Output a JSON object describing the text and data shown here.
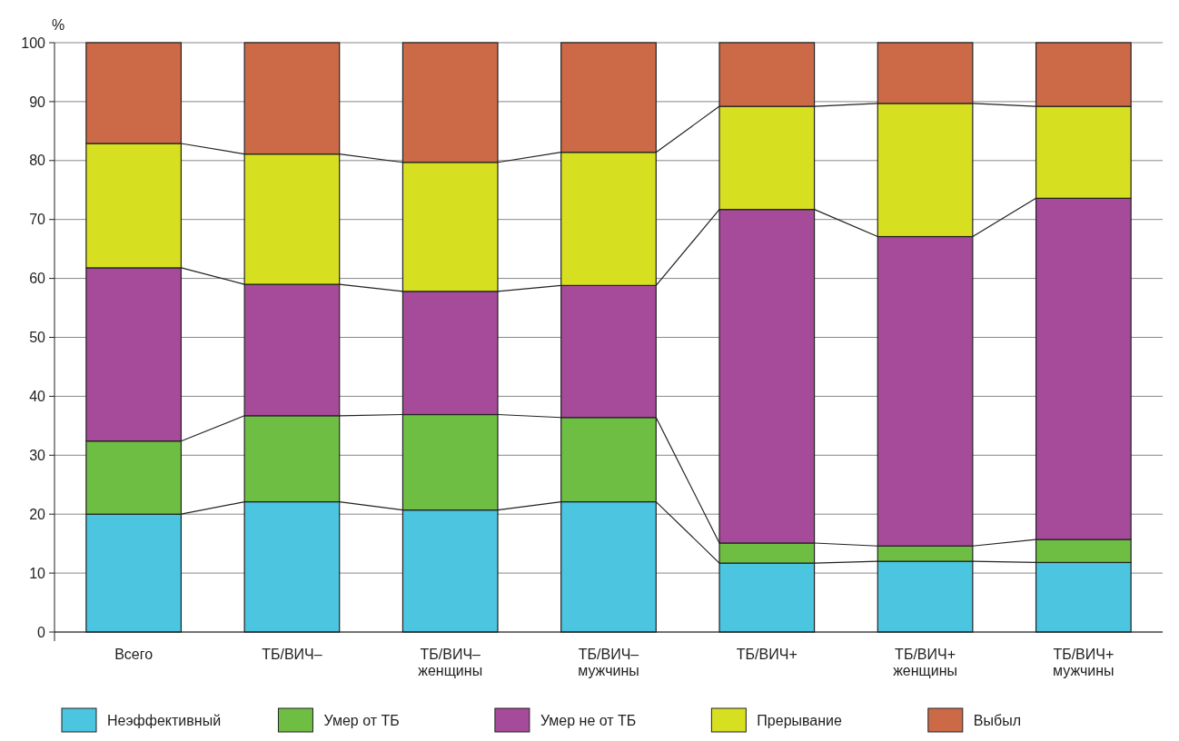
{
  "chart_data": {
    "type": "bar",
    "stacked": true,
    "ylabel": "%",
    "categories": [
      "Всего",
      "ТБ/ВИЧ–",
      "ТБ/ВИЧ–\nженщины",
      "ТБ/ВИЧ–\nмужчины",
      "ТБ/ВИЧ+",
      "ТБ/ВИЧ+\nженщины",
      "ТБ/ВИЧ+\nмужчины"
    ],
    "series": [
      {
        "name": "Неэффективный",
        "color": "#4bc5e0",
        "values": [
          20.0,
          22.1,
          20.7,
          22.1,
          11.7,
          12.0,
          11.8
        ]
      },
      {
        "name": "Умер от ТБ",
        "color": "#6fbe44",
        "values": [
          12.4,
          14.6,
          16.2,
          14.3,
          3.4,
          2.6,
          3.9
        ]
      },
      {
        "name": "Умер не от ТБ",
        "color": "#a64a9a",
        "values": [
          29.4,
          22.3,
          20.9,
          22.4,
          56.6,
          52.5,
          57.9
        ]
      },
      {
        "name": "Прерывание",
        "color": "#d7df21",
        "values": [
          21.1,
          22.1,
          21.9,
          22.6,
          17.5,
          22.6,
          15.6
        ]
      },
      {
        "name": "Выбыл",
        "color": "#cc6a48",
        "values": [
          17.1,
          18.9,
          20.3,
          18.6,
          10.8,
          10.3,
          10.8
        ]
      }
    ],
    "ylim": [
      0,
      100
    ],
    "yticks": [
      0,
      10,
      20,
      30,
      40,
      50,
      60,
      70,
      80,
      90,
      100
    ],
    "grid": "y",
    "legend": "bottom"
  }
}
